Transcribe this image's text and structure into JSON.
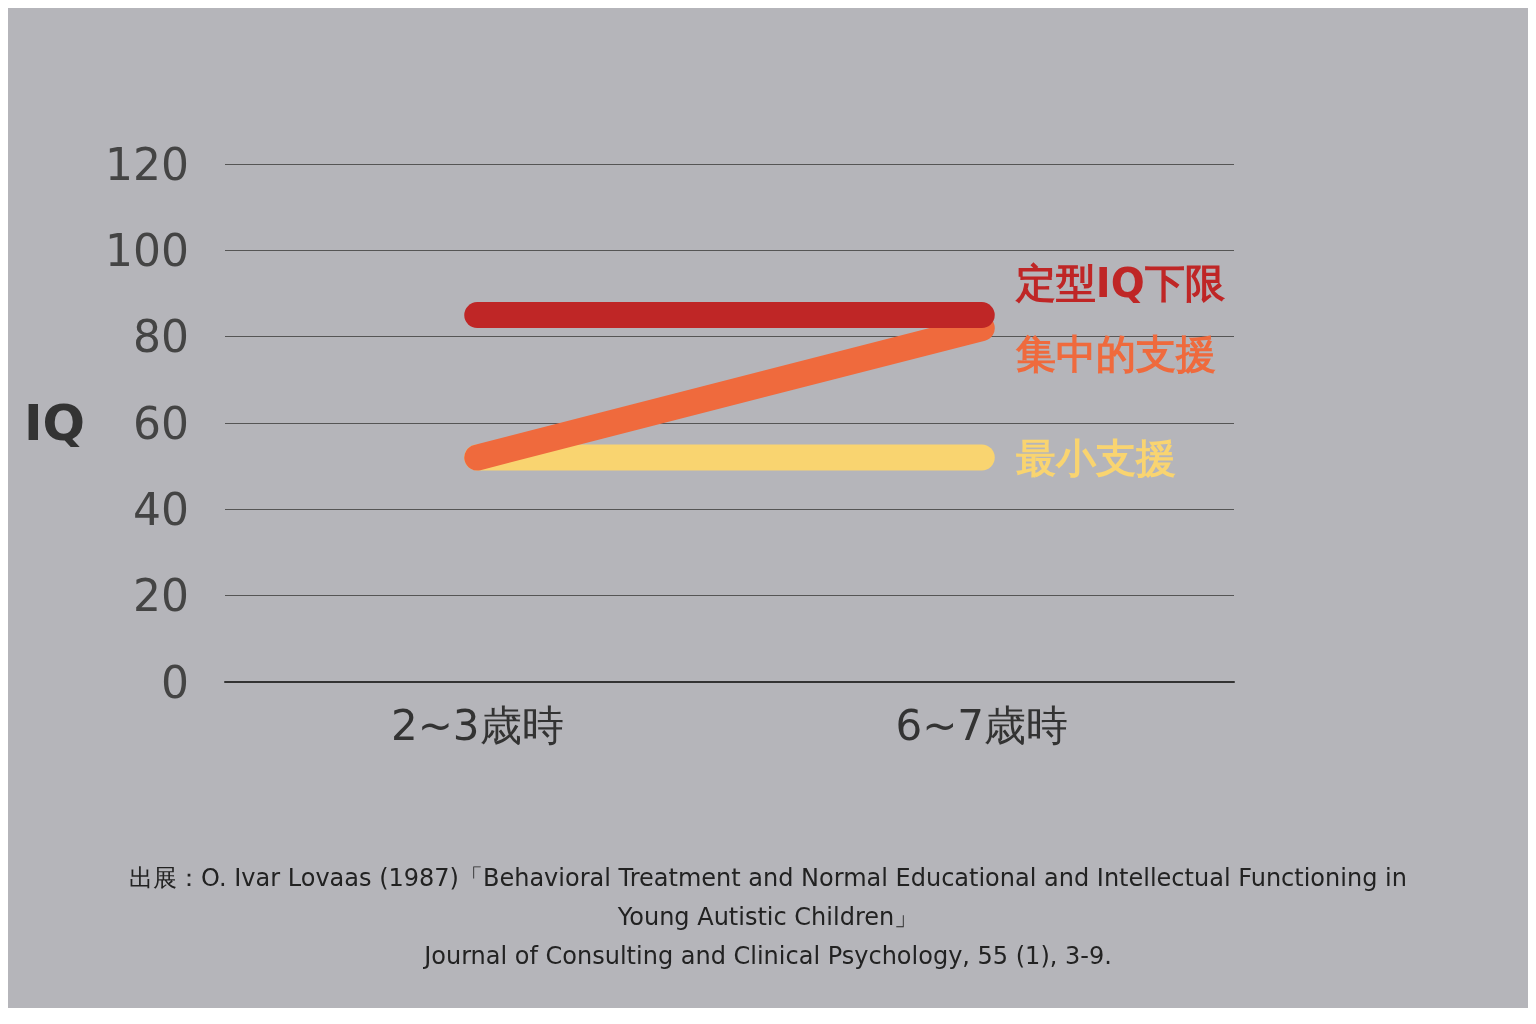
{
  "chart_data": {
    "type": "line",
    "ylabel": "IQ",
    "categories": [
      "2~3歳時",
      "6~7歳時"
    ],
    "series": [
      {
        "name": "定型IQ下限",
        "color": "#bf2626",
        "values": [
          85,
          85
        ]
      },
      {
        "name": "集中的支援",
        "color": "#ef6a3d",
        "values": [
          52,
          82
        ]
      },
      {
        "name": "最小支援",
        "color": "#f9d470",
        "values": [
          52,
          52
        ]
      }
    ],
    "ylim": [
      0,
      120
    ],
    "yticks": [
      0,
      20,
      40,
      60,
      80,
      100,
      120
    ],
    "grid": "y",
    "legend": false,
    "line_style": "solid",
    "annotations": [
      "出展：O. Ivar Lovaas (1987)「Behavioral Treatment and Normal Educational and Intellectual Functioning in",
      "Young Autistic Children」",
      "Journal of Consulting and Clinical Psychology, 55 (1), 3-9."
    ]
  }
}
